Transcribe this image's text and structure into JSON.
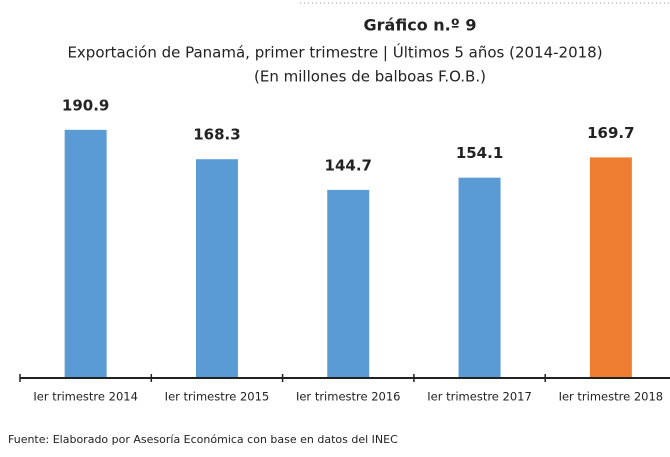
{
  "chart_data": {
    "type": "bar",
    "title": "Gráfico n.º 9",
    "subtitle": [
      "Exportación de Panamá, primer trimestre | Últimos 5 años (2014-2018)",
      "(En millones de balboas F.O.B.)"
    ],
    "categories": [
      "Ier trimestre 2014",
      "Ier trimestre 2015",
      "Ier trimestre 2016",
      "Ier trimestre  2017",
      "Ier trimestre 2018"
    ],
    "values": [
      190.9,
      168.3,
      144.7,
      154.1,
      169.7
    ],
    "colors": [
      "#5b9bd5",
      "#5b9bd5",
      "#5b9bd5",
      "#5b9bd5",
      "#ed7d31"
    ],
    "ylim": [
      0,
      200
    ],
    "note": "Fuente: Elaborado por Asesoría Económica con base en datos del INEC"
  }
}
